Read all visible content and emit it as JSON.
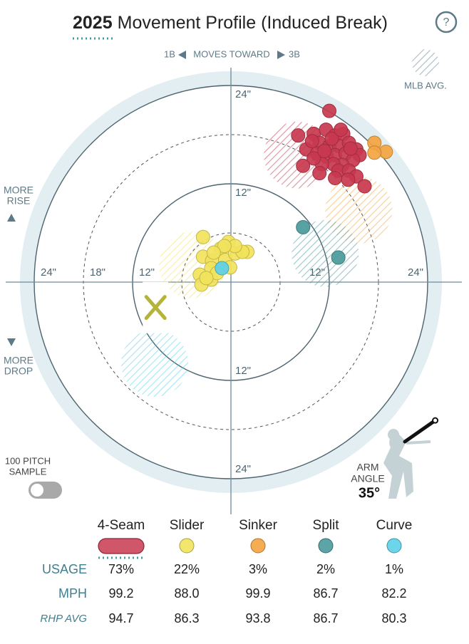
{
  "header": {
    "year": "2025",
    "title": "Movement Profile (Induced Break)",
    "help": "?"
  },
  "chart_data": {
    "type": "scatter",
    "direction": {
      "left": "1B",
      "middle": "MOVES TOWARD",
      "right": "3B"
    },
    "avg_legend": "MLB AVG.",
    "rise_label": [
      "MORE",
      "RISE"
    ],
    "drop_label": [
      "MORE",
      "DROP"
    ],
    "rings": [
      6,
      12,
      18,
      24
    ],
    "ticks": {
      "left": [
        {
          "value": 24,
          "label": "24\""
        },
        {
          "value": 18,
          "label": "18\""
        },
        {
          "value": 12,
          "label": "12\""
        }
      ],
      "right": [
        {
          "value": 12,
          "label": "12\""
        },
        {
          "value": 24,
          "label": "24\""
        }
      ],
      "top": [
        {
          "value": 24,
          "label": "24\""
        },
        {
          "value": 12,
          "label": "12\""
        }
      ],
      "bottom": [
        {
          "value": 12,
          "label": "12\""
        },
        {
          "value": 24,
          "label": "24\""
        }
      ]
    },
    "series": [
      {
        "name": "4-Seam",
        "color": "#c8384f",
        "x": [
          12.0,
          8.2,
          10.1,
          11.6,
          12.7,
          13.7,
          10.8,
          12.0,
          13.2,
          14.4,
          15.3,
          15.7,
          9.2,
          10.5,
          11.7,
          12.7,
          14.0,
          14.9,
          13.6,
          12.5,
          11.1,
          10.1,
          8.8,
          10.8,
          13.1,
          14.4,
          15.3,
          16.3,
          14.3,
          12.7,
          11.4,
          12.3,
          9.9,
          13.4,
          14.6
        ],
        "y": [
          20.9,
          17.9,
          18.1,
          18.6,
          17.9,
          18.1,
          17.0,
          16.6,
          16.6,
          17.0,
          16.2,
          15.5,
          16.2,
          15.7,
          15.3,
          15.5,
          15.7,
          14.9,
          14.3,
          14.4,
          14.4,
          15.1,
          14.2,
          13.3,
          13.6,
          13.6,
          12.9,
          11.7,
          12.5,
          12.7,
          16.0,
          17.5,
          17.2,
          18.6,
          16.3
        ],
        "avg": {
          "x": 8.1,
          "y": 15.5
        },
        "usage": "73%",
        "mph": "99.2",
        "rhp_avg": "94.7"
      },
      {
        "name": "Slider",
        "color": "#f2e35c",
        "x": [
          -3.4,
          -0.3,
          2.0,
          -1.2,
          -3.4,
          -2.3,
          -0.7,
          -0.1,
          -2.4,
          -3.8,
          -3.6,
          -2.4,
          -1.7,
          0.5,
          1.4,
          0.5,
          -0.8,
          -2.1,
          -3.0
        ],
        "y": [
          5.5,
          4.9,
          3.7,
          4.1,
          3.1,
          2.6,
          2.7,
          1.8,
          1.7,
          0.9,
          -0.3,
          0.3,
          1.1,
          3.5,
          3.7,
          4.4,
          4.4,
          3.6,
          0.5
        ],
        "avg": {
          "x": -4.7,
          "y": 2.1
        },
        "usage": "22%",
        "mph": "88.0",
        "rhp_avg": "86.3"
      },
      {
        "name": "Sinker",
        "color": "#f4a440",
        "x": [
          17.5,
          18.9,
          17.5
        ],
        "y": [
          17.0,
          15.9,
          15.8
        ],
        "avg": {
          "x": 15.6,
          "y": 8.8
        },
        "usage": "3%",
        "mph": "99.9",
        "rhp_avg": "93.8"
      },
      {
        "name": "Split",
        "color": "#4b9a9c",
        "x": [
          8.8,
          13.1
        ],
        "y": [
          6.7,
          3.0
        ],
        "avg": {
          "x": 11.5,
          "y": 3.5
        },
        "usage": "2%",
        "mph": "86.7",
        "rhp_avg": "86.7"
      },
      {
        "name": "Curve",
        "color": "#5cd0e8",
        "x": [
          -1.1
        ],
        "y": [
          1.7
        ],
        "avg": {
          "x": -9.3,
          "y": -9.9
        },
        "usage": "1%",
        "mph": "82.2",
        "rhp_avg": "80.3"
      }
    ],
    "marker": {
      "x": -9.2,
      "y": -3.1
    },
    "sample_label": [
      "100 PITCH",
      "SAMPLE"
    ],
    "arm_label": [
      "ARM",
      "ANGLE"
    ],
    "arm_angle": {
      "value": 35,
      "label": "35°"
    }
  },
  "table": {
    "labels": [
      "USAGE",
      "MPH",
      "RHP AVG"
    ]
  }
}
